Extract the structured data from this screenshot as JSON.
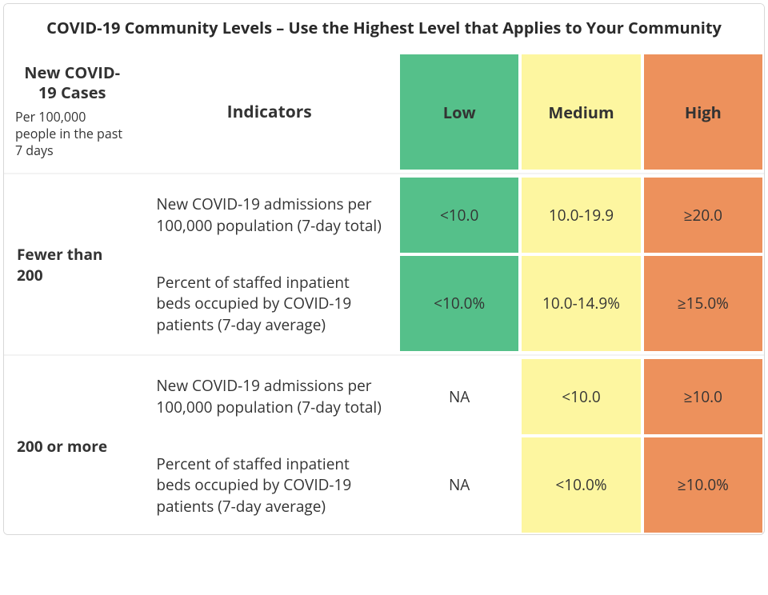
{
  "type": "table",
  "title": "COVID-19 Community Levels – Use the Highest Level that Applies to Your Community",
  "colors": {
    "low": "#55c08a",
    "medium": "#fdf6a0",
    "high": "#ed915c",
    "na": "#ffffff",
    "border": "#ffffff",
    "frame": "#d8d8d8",
    "text": "#333333",
    "sep": "#f3f3f3"
  },
  "fontsize": {
    "title": 20,
    "header": 20,
    "subheader": 16,
    "body": 19
  },
  "columns": {
    "cases": {
      "title": "New COVID-19 Cases",
      "subtitle": "Per 100,000 people in the past 7 days"
    },
    "indicators": "Indicators",
    "levels": [
      {
        "key": "low",
        "label": "Low",
        "color": "#55c08a"
      },
      {
        "key": "medium",
        "label": "Medium",
        "color": "#fdf6a0"
      },
      {
        "key": "high",
        "label": "High",
        "color": "#ed915c"
      }
    ]
  },
  "groups": [
    {
      "label": "Fewer than 200",
      "rows": [
        {
          "indicator": "New COVID-19 admissions per 100,000 population (7-day total)",
          "values": {
            "low": "<10.0",
            "medium": "10.0-19.9",
            "high": "≥20.0"
          },
          "na": []
        },
        {
          "indicator": "Percent of staffed inpatient beds occupied by COVID-19 patients (7-day average)",
          "values": {
            "low": "<10.0%",
            "medium": "10.0-14.9%",
            "high": "≥15.0%"
          },
          "na": []
        }
      ]
    },
    {
      "label": "200 or more",
      "rows": [
        {
          "indicator": "New COVID-19 admissions per 100,000 population (7-day total)",
          "values": {
            "low": "NA",
            "medium": "<10.0",
            "high": "≥10.0"
          },
          "na": [
            "low"
          ]
        },
        {
          "indicator": "Percent of staffed inpatient beds occupied by COVID-19 patients (7-day average)",
          "values": {
            "low": "NA",
            "medium": "<10.0%",
            "high": "≥10.0%"
          },
          "na": [
            "low"
          ]
        }
      ]
    }
  ]
}
